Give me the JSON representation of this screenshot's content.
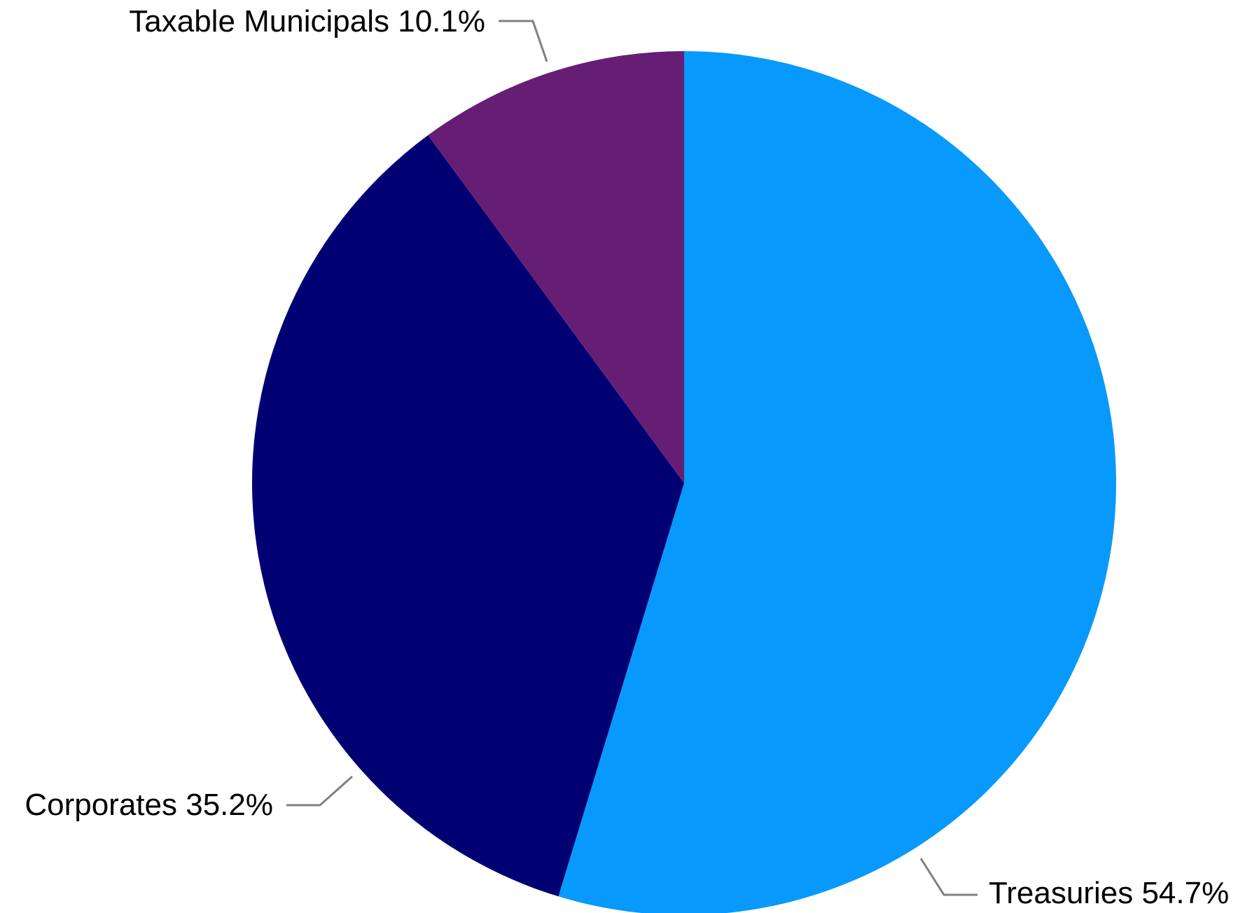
{
  "chart_data": {
    "type": "pie",
    "start_angle_deg": 0,
    "direction": "clockwise",
    "slices": [
      {
        "label": "Treasuries",
        "value": 54.7,
        "value_label": "54.7%",
        "color": "#0899FC"
      },
      {
        "label": "Corporates",
        "value": 35.2,
        "value_label": "35.2%",
        "color": "#000073"
      },
      {
        "label": "Taxable Municipals",
        "value": 10.1,
        "value_label": "10.1%",
        "color": "#661E75"
      }
    ],
    "title": "",
    "legend": "none",
    "labels_position": "outside-with-leader-lines"
  }
}
